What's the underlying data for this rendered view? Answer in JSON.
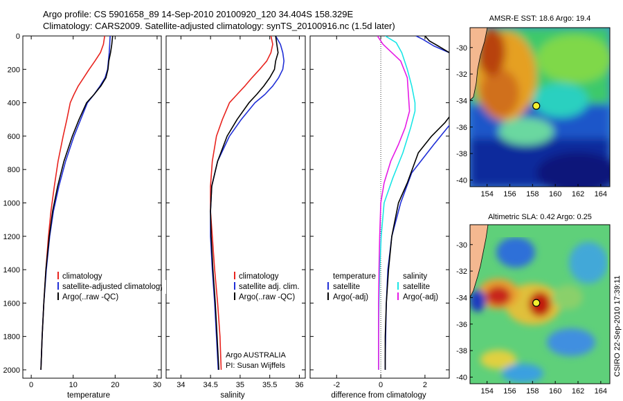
{
  "title": {
    "line1": "Argo profile: CS 5901658_89 14-Sep-2010 20100920_120 34.404S 158.329E",
    "line2": "Climatology: CARS2009. Satellite-adjusted climatology: synTS_20100916.nc (1.5d later)"
  },
  "credits": {
    "program": "Argo AUSTRALIA",
    "pi": "PI: Susan Wijffels",
    "stamp": "CSIRO 22-Sep-2010 17:39:11"
  },
  "colors": {
    "climatology": "#e8231e",
    "satellite": "#1f2ed6",
    "argo": "#000000",
    "sat_diff_salinity": "#19e6e6",
    "argo_diff_salinity": "#e61ae6",
    "dotted_zero": "#333333"
  },
  "chart_data": [
    {
      "type": "line",
      "name": "temperature-profile",
      "xlabel": "temperature",
      "xlim": [
        -2,
        31
      ],
      "ylim": [
        2050,
        0
      ],
      "y_ticks": [
        0,
        200,
        400,
        600,
        800,
        1000,
        1200,
        1400,
        1600,
        1800,
        2000
      ],
      "x_ticks": [
        0,
        10,
        20,
        30
      ],
      "legend": {
        "location": "lower-right",
        "entries": [
          "climatology",
          "satellite-adjusted climatology",
          "Argo(..raw -QC)"
        ]
      },
      "series": [
        {
          "name": "climatology",
          "color_key": "climatology",
          "x": [
            17.5,
            17.2,
            16.5,
            15.2,
            13.8,
            12.5,
            11.2,
            10.2,
            9.3,
            8.5,
            7.6,
            6.4,
            5.5,
            4.7,
            4.1,
            3.5,
            3.0,
            2.6,
            2.3
          ],
          "y": [
            0,
            50,
            100,
            150,
            200,
            250,
            300,
            350,
            400,
            500,
            600,
            750,
            900,
            1050,
            1200,
            1400,
            1600,
            1800,
            2000
          ]
        },
        {
          "name": "satellite-adjusted climatology",
          "color_key": "satellite",
          "x": [
            18.8,
            18.7,
            18.6,
            18.4,
            18.2,
            17.6,
            16.4,
            15.0,
            13.4,
            11.8,
            10.2,
            8.2,
            6.6,
            5.3,
            4.4,
            3.6,
            3.0,
            2.6,
            2.3
          ],
          "y": [
            0,
            50,
            100,
            150,
            200,
            250,
            300,
            350,
            400,
            500,
            600,
            750,
            900,
            1050,
            1200,
            1400,
            1600,
            1800,
            2000
          ]
        },
        {
          "name": "Argo(..raw -QC)",
          "color_key": "argo",
          "x": [
            19.4,
            19.2,
            18.9,
            18.5,
            18.3,
            17.8,
            16.6,
            15.0,
            13.2,
            11.4,
            9.8,
            7.8,
            6.3,
            5.1,
            4.3,
            3.5,
            3.0,
            2.6,
            2.3
          ],
          "y": [
            0,
            50,
            100,
            150,
            200,
            250,
            300,
            350,
            400,
            500,
            600,
            750,
            900,
            1050,
            1200,
            1400,
            1600,
            1800,
            2000
          ]
        }
      ]
    },
    {
      "type": "line",
      "name": "salinity-profile",
      "xlabel": "salinity",
      "xlim": [
        33.75,
        36.1
      ],
      "ylim": [
        2050,
        0
      ],
      "x_ticks": [
        34,
        34.5,
        35,
        35.5,
        36
      ],
      "legend": {
        "location": "lower-right",
        "entries": [
          "climatology",
          "satellite adj. clim.",
          "Argo(..raw -QC)"
        ]
      },
      "series": [
        {
          "name": "climatology",
          "color_key": "climatology",
          "x": [
            35.52,
            35.55,
            35.52,
            35.45,
            35.33,
            35.2,
            35.08,
            34.95,
            34.82,
            34.7,
            34.6,
            34.53,
            34.5,
            34.5,
            34.53,
            34.57,
            34.62,
            34.66,
            34.68
          ],
          "y": [
            0,
            50,
            100,
            150,
            200,
            250,
            300,
            350,
            400,
            500,
            600,
            750,
            900,
            1050,
            1200,
            1400,
            1600,
            1800,
            2000
          ]
        },
        {
          "name": "satellite adj. clim.",
          "color_key": "satellite",
          "x": [
            35.6,
            35.68,
            35.72,
            35.74,
            35.72,
            35.65,
            35.55,
            35.42,
            35.25,
            35.02,
            34.82,
            34.62,
            34.52,
            34.5,
            34.5,
            34.53,
            34.57,
            34.6,
            34.63
          ],
          "y": [
            0,
            50,
            100,
            150,
            200,
            250,
            300,
            350,
            400,
            500,
            600,
            750,
            900,
            1050,
            1200,
            1400,
            1600,
            1800,
            2000
          ]
        },
        {
          "name": "Argo(..raw -QC)",
          "color_key": "argo",
          "x": [
            35.6,
            35.62,
            35.64,
            35.6,
            35.58,
            35.5,
            35.4,
            35.28,
            35.15,
            34.95,
            34.78,
            34.62,
            34.52,
            34.5,
            34.51,
            34.54,
            34.58,
            34.61,
            34.64
          ],
          "y": [
            0,
            50,
            100,
            150,
            200,
            250,
            300,
            350,
            400,
            500,
            600,
            750,
            900,
            1050,
            1200,
            1400,
            1600,
            1800,
            2000
          ]
        }
      ]
    },
    {
      "type": "line",
      "name": "difference-from-climatology",
      "xlabel": "difference from climatology",
      "xlim": [
        -3.2,
        3.1
      ],
      "ylim": [
        2050,
        0
      ],
      "x_ticks": [
        -2,
        0,
        2
      ],
      "legend": {
        "location": "lower-center",
        "entries": [
          "temperature",
          "satellite",
          "Argo(-adj)",
          "salinity",
          "satellite",
          "Argo(-adj)"
        ]
      },
      "series": [
        {
          "name": "temperature satellite",
          "color_key": "satellite",
          "x": [
            1.6,
            1.9,
            2.4,
            3.1,
            3.3,
            3.3,
            3.3,
            3.2,
            2.4,
            1.4,
            0.9,
            0.5,
            0.32,
            0.25,
            0.22,
            0.2,
            0.2
          ],
          "y": [
            0,
            20,
            60,
            100,
            150,
            300,
            450,
            520,
            650,
            820,
            1000,
            1200,
            1400,
            1600,
            1800,
            1950,
            2000
          ]
        },
        {
          "name": "temperature Argo(-adj)",
          "color_key": "argo",
          "x": [
            2.0,
            2.2,
            2.6,
            3.1,
            3.3,
            3.3,
            2.9,
            2.3,
            1.7,
            1.2,
            0.8,
            0.5,
            0.35,
            0.25,
            0.2,
            0.2
          ],
          "y": [
            0,
            30,
            60,
            100,
            200,
            450,
            520,
            600,
            700,
            880,
            1000,
            1200,
            1400,
            1600,
            1800,
            2000
          ]
        },
        {
          "name": "salinity satellite",
          "color_key": "sat_diff_salinity",
          "x": [
            0.2,
            0.7,
            0.95,
            1.2,
            1.4,
            1.55,
            1.55,
            1.35,
            1.0,
            0.55,
            0.15,
            0.02,
            -0.05,
            -0.08,
            -0.1,
            -0.1
          ],
          "y": [
            0,
            40,
            100,
            200,
            300,
            400,
            450,
            550,
            700,
            850,
            1000,
            1200,
            1400,
            1600,
            1800,
            2000
          ]
        },
        {
          "name": "salinity Argo(-adj)",
          "color_key": "argo_diff_salinity",
          "x": [
            -0.15,
            0.1,
            0.5,
            0.9,
            1.2,
            1.3,
            1.1,
            0.8,
            0.45,
            0.15,
            0.0,
            -0.05,
            -0.08,
            -0.1,
            -0.1
          ],
          "y": [
            0,
            50,
            100,
            150,
            250,
            450,
            550,
            650,
            750,
            880,
            1000,
            1200,
            1400,
            1600,
            2000
          ]
        }
      ]
    },
    {
      "type": "heatmap",
      "name": "amsr-sst-map",
      "title": "AMSR-E SST: 18.6 Argo: 19.4",
      "xlim": [
        152.5,
        164.8
      ],
      "ylim": [
        -40.5,
        -28.5
      ],
      "x_ticks": [
        154,
        156,
        158,
        160,
        162,
        164
      ],
      "y_ticks": [
        -30,
        -32,
        -34,
        -36,
        -38,
        -40
      ],
      "argo_position": {
        "lon": 158.329,
        "lat": -34.404
      }
    },
    {
      "type": "heatmap",
      "name": "altimetric-sla-map",
      "title": "Altimetric SLA: 0.42 Argo: 0.25",
      "xlim": [
        152.5,
        164.8
      ],
      "ylim": [
        -40.5,
        -28.5
      ],
      "x_ticks": [
        154,
        156,
        158,
        160,
        162,
        164
      ],
      "y_ticks": [
        -30,
        -32,
        -34,
        -36,
        -38,
        -40
      ],
      "argo_position": {
        "lon": 158.329,
        "lat": -34.404
      }
    }
  ]
}
